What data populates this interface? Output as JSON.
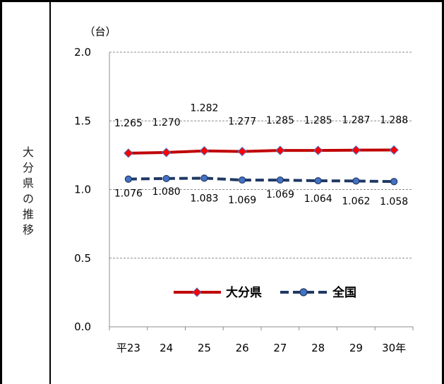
{
  "side_label": [
    "大",
    "分",
    "県",
    "の",
    "推",
    "移"
  ],
  "chart_data": {
    "type": "line",
    "unit_label": "（台）",
    "categories": [
      "平23",
      "24",
      "25",
      "26",
      "27",
      "28",
      "29",
      "30年"
    ],
    "ylim": [
      0.0,
      2.0
    ],
    "yticks": [
      "0.0",
      "0.5",
      "1.0",
      "1.5",
      "2.0"
    ],
    "grid": true,
    "legend_position": "bottom-center",
    "series": [
      {
        "name": "大分県",
        "values": [
          1.265,
          1.27,
          1.282,
          1.277,
          1.285,
          1.285,
          1.287,
          1.288
        ],
        "labels": [
          "1.265",
          "1.270",
          "1.282",
          "1.277",
          "1.285",
          "1.285",
          "1.287",
          "1.288"
        ],
        "color": "#C00000",
        "marker_color": "#FF0000",
        "line_style": "solid",
        "marker": "diamond"
      },
      {
        "name": "全国",
        "values": [
          1.076,
          1.08,
          1.083,
          1.069,
          1.069,
          1.064,
          1.062,
          1.058
        ],
        "labels": [
          "1.076",
          "1.080",
          "1.083",
          "1.069",
          "1.069",
          "1.064",
          "1.062",
          "1.058"
        ],
        "color": "#1F3864",
        "marker_color": "#4472C4",
        "line_style": "dashed",
        "marker": "circle"
      }
    ]
  }
}
